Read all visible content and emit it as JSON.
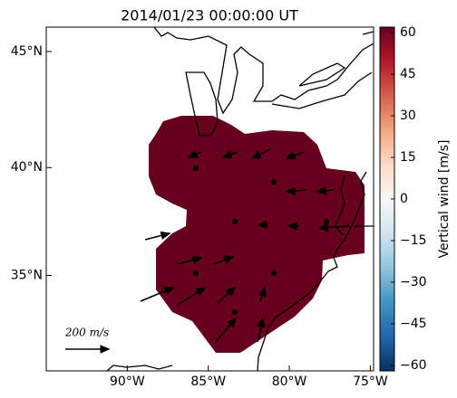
{
  "chart_data": {
    "type": "map",
    "title": "2014/01/23 00:00:00 UT",
    "projection": "mercator",
    "xlim": [
      -95,
      -74.8
    ],
    "ylim": [
      30.3,
      46.0
    ],
    "xticks": [
      {
        "value": -90,
        "label": "90°W"
      },
      {
        "value": -85,
        "label": "85°W"
      },
      {
        "value": -80,
        "label": "80°W"
      },
      {
        "value": -75,
        "label": "75°W"
      }
    ],
    "yticks": [
      {
        "value": 35,
        "label": "35°N"
      },
      {
        "value": 40,
        "label": "40°N"
      },
      {
        "value": 45,
        "label": "45°N"
      }
    ],
    "colorbar": {
      "label": "Vertical wind [m/s]",
      "clim": [
        -62,
        62
      ],
      "ticks": [
        {
          "value": -60,
          "label": "−60"
        },
        {
          "value": -45,
          "label": "−45"
        },
        {
          "value": -30,
          "label": "−30"
        },
        {
          "value": -15,
          "label": "−15"
        },
        0,
        15,
        30,
        45,
        60
      ]
    },
    "vector_key": "200 m/s"
  }
}
